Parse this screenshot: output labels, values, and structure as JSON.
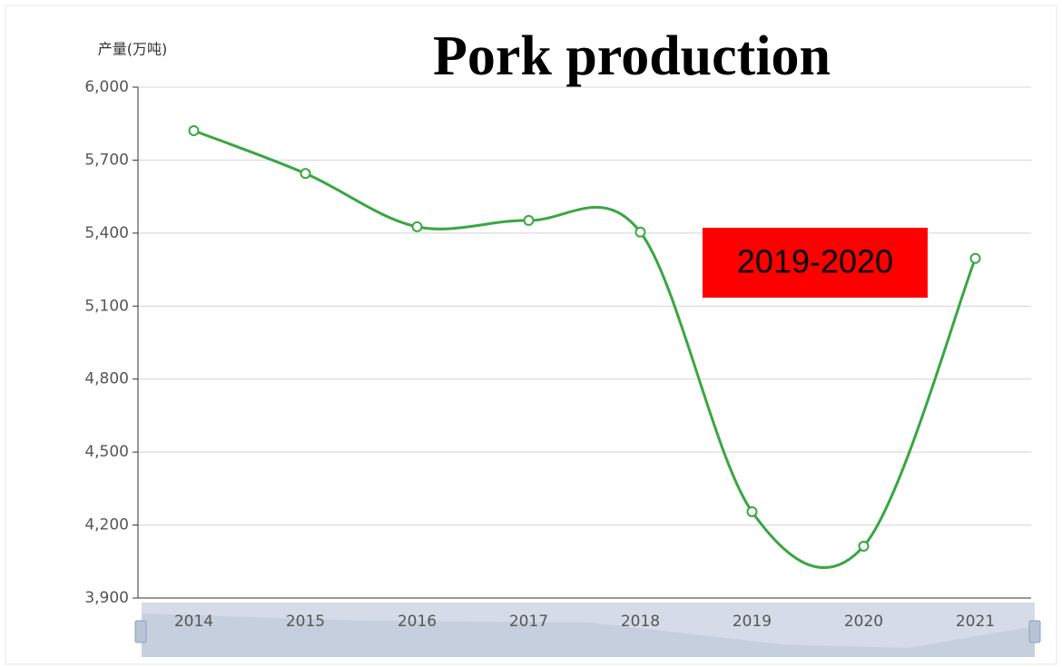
{
  "chart_data": {
    "type": "line",
    "title": "Pork production",
    "y_label": "产量(万吨)",
    "annotation": "2019-2020",
    "categories": [
      "2014",
      "2015",
      "2016",
      "2017",
      "2018",
      "2019",
      "2020",
      "2021"
    ],
    "values": [
      5821,
      5645,
      5426,
      5452,
      5404,
      4255,
      4113,
      5296
    ],
    "color": "#3aa642",
    "smooth": true,
    "grid": true,
    "ylim": [
      3900,
      6000
    ],
    "yticks": [
      {
        "value": 3900,
        "label": "3,900"
      },
      {
        "value": 4200,
        "label": "4,200"
      },
      {
        "value": 4500,
        "label": "4,500"
      },
      {
        "value": 4800,
        "label": "4,800"
      },
      {
        "value": 5100,
        "label": "5,100"
      },
      {
        "value": 5400,
        "label": "5,400"
      },
      {
        "value": 5700,
        "label": "5,700"
      },
      {
        "value": 6000,
        "label": "6,000"
      }
    ]
  }
}
